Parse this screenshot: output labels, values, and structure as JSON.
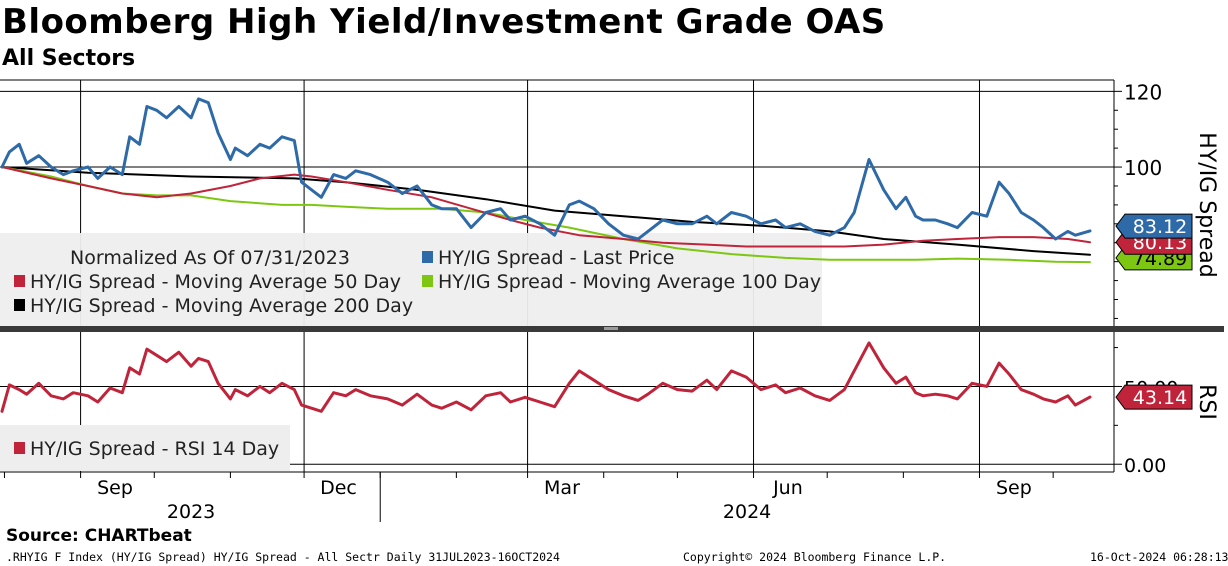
{
  "title": "Bloomberg High Yield/Investment Grade OAS",
  "subtitle": "All Sectors",
  "source": "Source: CHARTbeat",
  "footer": {
    "left": ".RHYIG F Index (HY/IG Spread) HY/IG Spread - All Sectr  Daily 31JUL2023-16OCT2024",
    "center": "Copyright© 2024 Bloomberg Finance L.P.",
    "right": "16-Oct-2024 06:28:13"
  },
  "colors": {
    "last_price": "#2e6aa8",
    "ma50": "#c0243a",
    "ma100": "#7dc712",
    "ma200": "#000000",
    "rsi": "#c0243a",
    "legend_bg": "#eeeeee"
  },
  "chart_data": [
    {
      "type": "line",
      "panel": "upper",
      "ylabel": "HY/IG Spread",
      "ylim": [
        58,
        123
      ],
      "yticks": [
        "120",
        "100"
      ],
      "x_ticks": [
        "Sep",
        "Dec",
        "Mar",
        "Jun",
        "Sep"
      ],
      "x_years": [
        "2023",
        "2024"
      ],
      "x_range": [
        "2023-07-31",
        "2024-10-16"
      ],
      "legend_title": "Normalized As Of 07/31/2023",
      "legend": [
        "HY/IG Spread - Last Price",
        "HY/IG Spread - Moving Average 50 Day",
        "HY/IG Spread - Moving Average 100 Day",
        "HY/IG Spread - Moving Average 200 Day"
      ],
      "value_labels": [
        "83.12",
        "80.13",
        "74.89"
      ],
      "series": [
        {
          "name": "HY/IG Spread - Last Price",
          "x": [
            "2023-07-31",
            "2023-08-03",
            "2023-08-07",
            "2023-08-10",
            "2023-08-15",
            "2023-08-20",
            "2023-08-25",
            "2023-08-29",
            "2023-09-04",
            "2023-09-08",
            "2023-09-13",
            "2023-09-18",
            "2023-09-21",
            "2023-09-25",
            "2023-09-28",
            "2023-10-02",
            "2023-10-06",
            "2023-10-11",
            "2023-10-16",
            "2023-10-19",
            "2023-10-23",
            "2023-10-27",
            "2023-11-01",
            "2023-11-03",
            "2023-11-08",
            "2023-11-13",
            "2023-11-17",
            "2023-11-22",
            "2023-11-27",
            "2023-11-30",
            "2023-12-04",
            "2023-12-08",
            "2023-12-13",
            "2023-12-18",
            "2023-12-22",
            "2023-12-28",
            "2024-01-04",
            "2024-01-10",
            "2024-01-16",
            "2024-01-22",
            "2024-01-26",
            "2024-02-01",
            "2024-02-07",
            "2024-02-13",
            "2024-02-19",
            "2024-02-23",
            "2024-02-29",
            "2024-03-06",
            "2024-03-12",
            "2024-03-18",
            "2024-03-22",
            "2024-03-28",
            "2024-04-03",
            "2024-04-09",
            "2024-04-15",
            "2024-04-19",
            "2024-04-25",
            "2024-05-01",
            "2024-05-07",
            "2024-05-13",
            "2024-05-17",
            "2024-05-23",
            "2024-05-29",
            "2024-06-04",
            "2024-06-10",
            "2024-06-14",
            "2024-06-20",
            "2024-06-26",
            "2024-07-02",
            "2024-07-08",
            "2024-07-12",
            "2024-07-18",
            "2024-07-24",
            "2024-07-29",
            "2024-08-02",
            "2024-08-06",
            "2024-08-09",
            "2024-08-14",
            "2024-08-19",
            "2024-08-23",
            "2024-08-29",
            "2024-09-04",
            "2024-09-09",
            "2024-09-13",
            "2024-09-18",
            "2024-09-23",
            "2024-09-27",
            "2024-10-02",
            "2024-10-07",
            "2024-10-10",
            "2024-10-16"
          ],
          "values": [
            100,
            104,
            106,
            101,
            103,
            100,
            98,
            99,
            100,
            97,
            100,
            98,
            108,
            106,
            116,
            115,
            113,
            116,
            113,
            118,
            117,
            109,
            102,
            105,
            103,
            106,
            105,
            108,
            107,
            96,
            94,
            92,
            98,
            97,
            99,
            98,
            96,
            93,
            95,
            90,
            89,
            89,
            84,
            88,
            89,
            86,
            87,
            85,
            82,
            90,
            91,
            89,
            85,
            82,
            81,
            83,
            86,
            85,
            85,
            87,
            85,
            88,
            87,
            85,
            86,
            84,
            85,
            83,
            82,
            84,
            88,
            102,
            94,
            89,
            92,
            87,
            86,
            86,
            85,
            84,
            88,
            87,
            96,
            93,
            88,
            86,
            84,
            81,
            83,
            82,
            83.12
          ]
        },
        {
          "name": "HY/IG Spread - Moving Average 50 Day",
          "x": [
            "2023-07-31",
            "2023-08-20",
            "2023-09-04",
            "2023-09-18",
            "2023-10-02",
            "2023-10-16",
            "2023-11-01",
            "2023-11-13",
            "2023-11-27",
            "2023-12-04",
            "2023-12-18",
            "2024-01-04",
            "2024-01-22",
            "2024-02-07",
            "2024-02-23",
            "2024-03-06",
            "2024-03-22",
            "2024-04-09",
            "2024-04-25",
            "2024-05-13",
            "2024-05-29",
            "2024-06-14",
            "2024-06-26",
            "2024-07-08",
            "2024-07-24",
            "2024-08-09",
            "2024-08-23",
            "2024-09-09",
            "2024-09-23",
            "2024-10-07",
            "2024-10-16"
          ],
          "values": [
            100,
            97,
            95,
            93,
            92,
            93,
            95,
            97,
            98,
            97.5,
            96,
            94,
            92,
            89,
            86,
            84,
            82,
            81,
            80,
            79.5,
            79,
            79,
            79,
            79,
            79.5,
            80.5,
            81,
            81.5,
            81.5,
            81,
            80.13
          ]
        },
        {
          "name": "HY/IG Spread - Moving Average 100 Day",
          "x": [
            "2023-07-31",
            "2023-08-20",
            "2023-09-04",
            "2023-09-18",
            "2023-10-02",
            "2023-10-16",
            "2023-11-01",
            "2023-11-22",
            "2023-12-04",
            "2023-12-18",
            "2024-01-04",
            "2024-01-26",
            "2024-02-13",
            "2024-02-29",
            "2024-03-18",
            "2024-04-09",
            "2024-05-01",
            "2024-05-23",
            "2024-06-14",
            "2024-07-02",
            "2024-07-18",
            "2024-08-06",
            "2024-08-23",
            "2024-09-13",
            "2024-10-02",
            "2024-10-16"
          ],
          "values": [
            100,
            97.5,
            95,
            93,
            92.5,
            92.5,
            91,
            90,
            90,
            89.5,
            89,
            89,
            88,
            86,
            84,
            81,
            78.5,
            77,
            76,
            75.5,
            75.5,
            75.5,
            75.8,
            75.5,
            75,
            74.89
          ]
        },
        {
          "name": "HY/IG Spread - Moving Average 200 Day",
          "x": [
            "2023-07-31",
            "2023-09-04",
            "2023-10-16",
            "2023-11-27",
            "2023-12-18",
            "2024-01-16",
            "2024-02-13",
            "2024-03-12",
            "2024-04-09",
            "2024-05-07",
            "2024-06-04",
            "2024-07-02",
            "2024-07-24",
            "2024-08-23",
            "2024-09-23",
            "2024-10-16"
          ],
          "values": [
            100,
            98.5,
            97.5,
            97,
            96,
            94,
            91.5,
            88.5,
            87,
            85.5,
            84.5,
            83,
            81,
            79.5,
            77.8,
            76.8
          ]
        }
      ]
    },
    {
      "type": "line",
      "panel": "lower",
      "ylabel": "RSI",
      "ylim": [
        -5,
        85
      ],
      "yticks": [
        "50.00",
        "0.00"
      ],
      "legend": [
        "HY/IG Spread - RSI 14 Day"
      ],
      "value_labels": [
        "43.14"
      ],
      "series": [
        {
          "name": "HY/IG Spread - RSI 14 Day",
          "x": [
            "2023-07-31",
            "2023-08-03",
            "2023-08-07",
            "2023-08-10",
            "2023-08-15",
            "2023-08-20",
            "2023-08-25",
            "2023-08-29",
            "2023-09-04",
            "2023-09-08",
            "2023-09-13",
            "2023-09-18",
            "2023-09-21",
            "2023-09-25",
            "2023-09-28",
            "2023-10-02",
            "2023-10-06",
            "2023-10-11",
            "2023-10-16",
            "2023-10-19",
            "2023-10-23",
            "2023-10-27",
            "2023-11-01",
            "2023-11-03",
            "2023-11-08",
            "2023-11-13",
            "2023-11-17",
            "2023-11-22",
            "2023-11-27",
            "2023-11-30",
            "2023-12-04",
            "2023-12-08",
            "2023-12-13",
            "2023-12-18",
            "2023-12-22",
            "2023-12-28",
            "2024-01-04",
            "2024-01-10",
            "2024-01-16",
            "2024-01-22",
            "2024-01-26",
            "2024-02-01",
            "2024-02-07",
            "2024-02-13",
            "2024-02-19",
            "2024-02-23",
            "2024-02-29",
            "2024-03-06",
            "2024-03-12",
            "2024-03-18",
            "2024-03-22",
            "2024-03-28",
            "2024-04-03",
            "2024-04-09",
            "2024-04-15",
            "2024-04-19",
            "2024-04-25",
            "2024-05-01",
            "2024-05-07",
            "2024-05-13",
            "2024-05-17",
            "2024-05-23",
            "2024-05-29",
            "2024-06-04",
            "2024-06-10",
            "2024-06-14",
            "2024-06-20",
            "2024-06-26",
            "2024-07-02",
            "2024-07-08",
            "2024-07-12",
            "2024-07-18",
            "2024-07-24",
            "2024-07-29",
            "2024-08-02",
            "2024-08-06",
            "2024-08-09",
            "2024-08-14",
            "2024-08-19",
            "2024-08-23",
            "2024-08-29",
            "2024-09-04",
            "2024-09-09",
            "2024-09-13",
            "2024-09-18",
            "2024-09-23",
            "2024-09-27",
            "2024-10-02",
            "2024-10-07",
            "2024-10-10",
            "2024-10-16"
          ],
          "values": [
            34,
            51,
            48,
            45,
            52,
            44,
            42,
            46,
            44,
            40,
            49,
            46,
            62,
            58,
            74,
            70,
            66,
            72,
            63,
            68,
            66,
            52,
            42,
            48,
            44,
            50,
            46,
            52,
            48,
            38,
            36,
            34,
            46,
            44,
            48,
            44,
            42,
            38,
            45,
            38,
            36,
            40,
            35,
            44,
            46,
            40,
            43,
            40,
            37,
            52,
            60,
            54,
            48,
            44,
            41,
            45,
            52,
            48,
            47,
            54,
            48,
            60,
            56,
            48,
            51,
            46,
            49,
            44,
            41,
            48,
            60,
            78,
            62,
            52,
            56,
            46,
            44,
            45,
            44,
            42,
            52,
            50,
            65,
            58,
            48,
            45,
            42,
            40,
            44,
            38,
            43.14
          ]
        }
      ]
    }
  ]
}
